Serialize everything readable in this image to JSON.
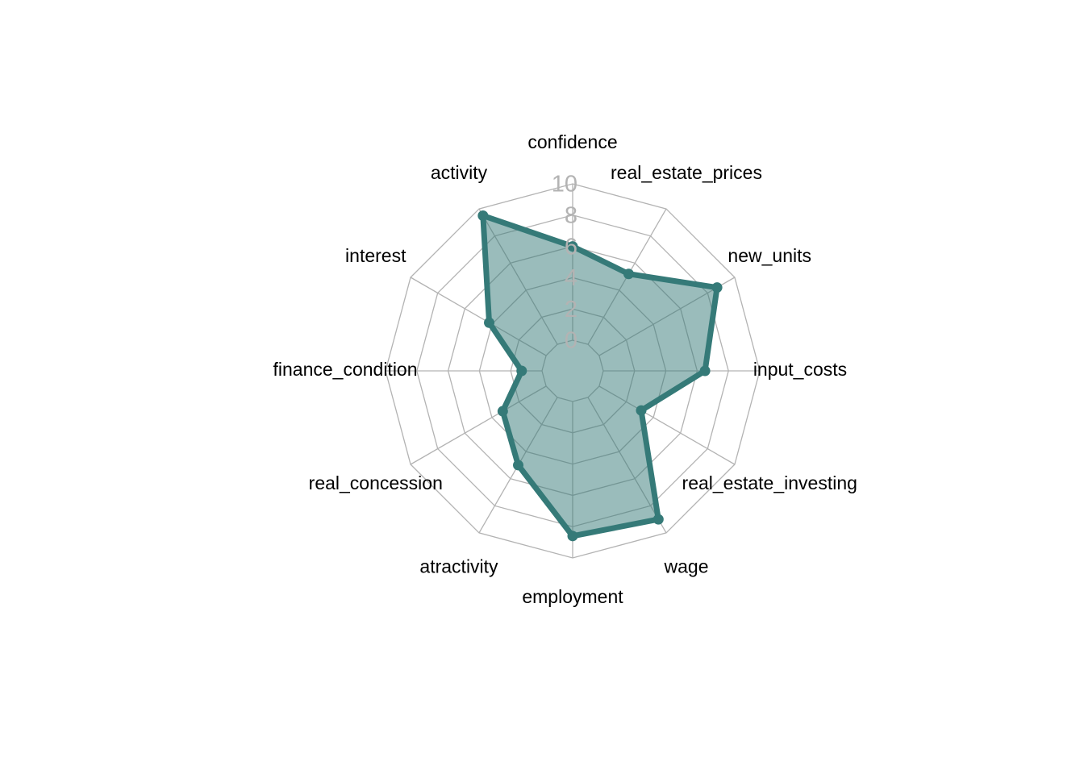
{
  "chart_data": {
    "type": "radar",
    "title": "",
    "axes": [
      "confidence",
      "real_estate_prices",
      "new_units",
      "input_costs",
      "real_estate_investing",
      "wage",
      "employment",
      "atractivity",
      "real_concession",
      "finance_condition",
      "interest",
      "activity"
    ],
    "rlim": [
      0,
      10
    ],
    "ticks": [
      "0",
      "2",
      "4",
      "6",
      "8",
      "10"
    ],
    "grid": true,
    "grid_shape": "polygon",
    "series": [
      {
        "values": [
          6.0,
          5.2,
          8.7,
          6.5,
          3.1,
          9.0,
          8.6,
          5.0,
          3.2,
          1.3,
          4.2,
          9.5
        ],
        "color": "#357A78",
        "fill_color": "#357A78",
        "fill_opacity": 0.5
      }
    ]
  },
  "colors": {
    "grid": "#b3b3b3",
    "tick_text": "#b3b3b3",
    "label_text": "#000000",
    "background": "#ffffff"
  }
}
